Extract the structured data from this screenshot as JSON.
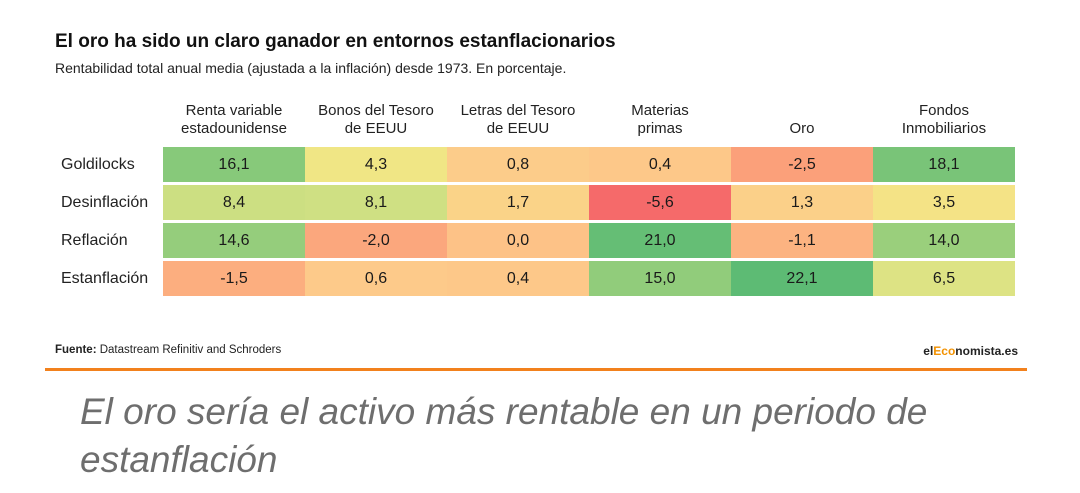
{
  "chart_data": {
    "type": "heatmap",
    "title": "El oro ha sido un claro ganador en entornos estanflacionarios",
    "subtitle": "Rentabilidad total anual media (ajustada a la inflación) desde 1973. En porcentaje.",
    "columns": [
      "Renta variable\nestadounidense",
      "Bonos del Tesoro\nde EEUU",
      "Letras del Tesoro\nde EEUU",
      "Materias\nprimas",
      "Oro",
      "Fondos\nInmobiliarios"
    ],
    "rows": [
      "Goldilocks",
      "Desinflación",
      "Reflación",
      "Estanflación"
    ],
    "values": [
      [
        16.1,
        4.3,
        0.8,
        0.4,
        -2.5,
        18.1
      ],
      [
        8.4,
        8.1,
        1.7,
        -5.6,
        1.3,
        3.5
      ],
      [
        14.6,
        -2.0,
        0.0,
        21.0,
        -1.1,
        14.0
      ],
      [
        -1.5,
        0.6,
        0.4,
        15.0,
        22.1,
        6.5
      ]
    ],
    "value_labels": [
      [
        "16,1",
        "4,3",
        "0,8",
        "0,4",
        "-2,5",
        "18,1"
      ],
      [
        "8,4",
        "8,1",
        "1,7",
        "-5,6",
        "1,3",
        "3,5"
      ],
      [
        "14,6",
        "-2,0",
        "0,0",
        "21,0",
        "-1,1",
        "14,0"
      ],
      [
        "-1,5",
        "0,6",
        "0,4",
        "15,0",
        "22,1",
        "6,5"
      ]
    ],
    "color_scale": [
      "#f56a6a",
      "#fba07a",
      "#fdc98a",
      "#f3e785",
      "#c7de82",
      "#88c97a",
      "#5dbb74"
    ]
  },
  "source": {
    "prefix": "Fuente:",
    "text": " Datastream Refinitiv and Schroders"
  },
  "brand": {
    "part1": "el",
    "part2": "Eco",
    "part3": "nomista.es"
  },
  "caption": "El oro sería el activo más rentable en un periodo de estanflación",
  "colors": {
    "divider": "#f2811d",
    "brand_accent": "#f29100"
  }
}
